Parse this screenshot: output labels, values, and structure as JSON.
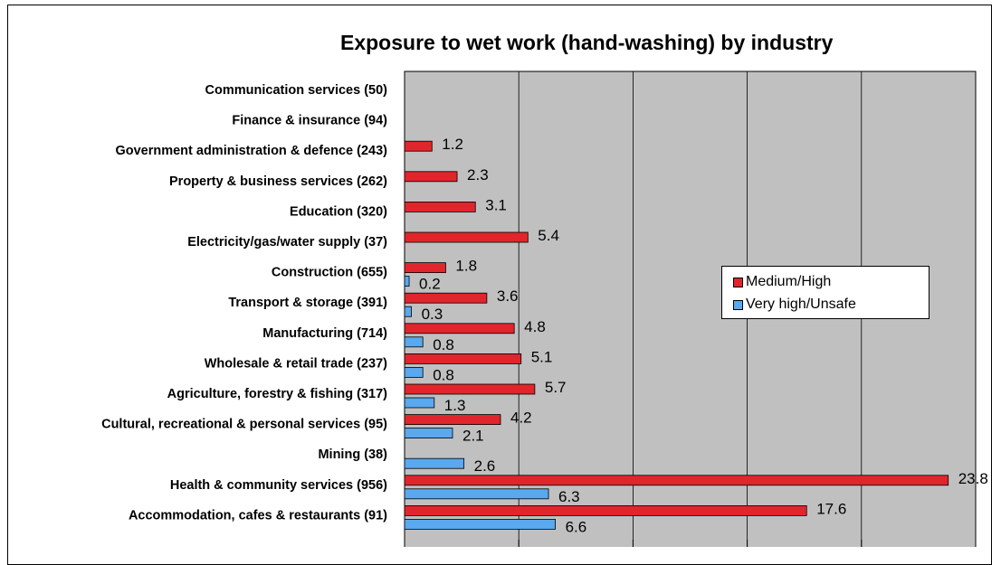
{
  "chart_data": {
    "type": "bar",
    "orientation": "horizontal",
    "title": "Exposure to wet work (hand-washing) by industry",
    "xlabel": "",
    "ylabel": "",
    "xlim": [
      0,
      25
    ],
    "grid": "vertical",
    "plot_background": "#c0c0c0",
    "legend_placement": "right",
    "categories": [
      "Communication services (50)",
      "Finance & insurance (94)",
      "Government administration & defence (243)",
      "Property & business services (262)",
      "Education (320)",
      "Electricity/gas/water supply (37)",
      "Construction (655)",
      "Transport & storage (391)",
      "Manufacturing (714)",
      "Wholesale & retail trade (237)",
      "Agriculture, forestry & fishing (317)",
      "Cultural, recreational & personal services (95)",
      "Mining (38)",
      "Health & community services (956)",
      "Accommodation, cafes & restaurants (91)"
    ],
    "series": [
      {
        "name": "Medium/High",
        "color": "#e0262c",
        "values": [
          null,
          null,
          1.2,
          2.3,
          3.1,
          5.4,
          1.8,
          3.6,
          4.8,
          5.1,
          5.7,
          4.2,
          null,
          23.8,
          17.6
        ]
      },
      {
        "name": "Very high/Unsafe",
        "color": "#5aa8ee",
        "values": [
          null,
          null,
          null,
          null,
          null,
          null,
          0.2,
          0.3,
          0.8,
          0.8,
          1.3,
          2.1,
          2.6,
          6.3,
          6.6
        ]
      }
    ]
  }
}
